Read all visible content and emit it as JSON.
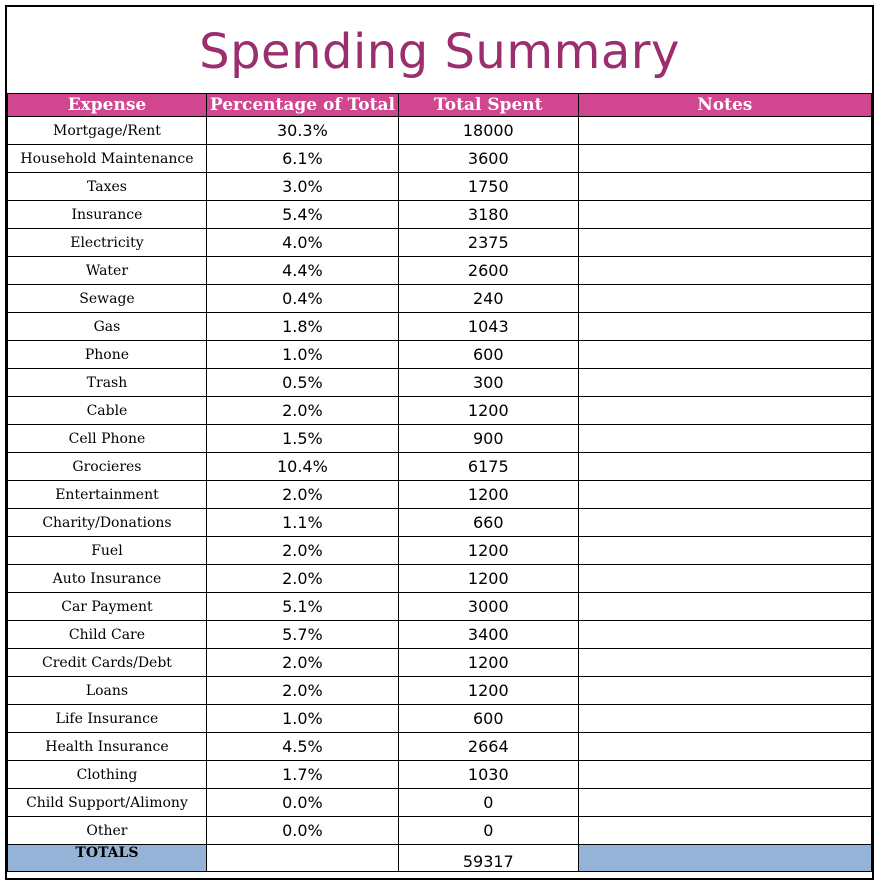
{
  "title": "Spending Summary",
  "columns": [
    "Expense",
    "Percentage of Total",
    "Total  Spent",
    "Notes"
  ],
  "rows": [
    {
      "expense": "Mortgage/Rent",
      "percent": "30.3%",
      "total": "18000",
      "notes": ""
    },
    {
      "expense": "Household Maintenance",
      "percent": "6.1%",
      "total": "3600",
      "notes": ""
    },
    {
      "expense": "Taxes",
      "percent": "3.0%",
      "total": "1750",
      "notes": ""
    },
    {
      "expense": "Insurance",
      "percent": "5.4%",
      "total": "3180",
      "notes": ""
    },
    {
      "expense": "Electricity",
      "percent": "4.0%",
      "total": "2375",
      "notes": ""
    },
    {
      "expense": "Water",
      "percent": "4.4%",
      "total": "2600",
      "notes": ""
    },
    {
      "expense": "Sewage",
      "percent": "0.4%",
      "total": "240",
      "notes": ""
    },
    {
      "expense": "Gas",
      "percent": "1.8%",
      "total": "1043",
      "notes": ""
    },
    {
      "expense": "Phone",
      "percent": "1.0%",
      "total": "600",
      "notes": ""
    },
    {
      "expense": "Trash",
      "percent": "0.5%",
      "total": "300",
      "notes": ""
    },
    {
      "expense": "Cable",
      "percent": "2.0%",
      "total": "1200",
      "notes": ""
    },
    {
      "expense": "Cell Phone",
      "percent": "1.5%",
      "total": "900",
      "notes": ""
    },
    {
      "expense": "Grocieres",
      "percent": "10.4%",
      "total": "6175",
      "notes": ""
    },
    {
      "expense": "Entertainment",
      "percent": "2.0%",
      "total": "1200",
      "notes": ""
    },
    {
      "expense": "Charity/Donations",
      "percent": "1.1%",
      "total": "660",
      "notes": ""
    },
    {
      "expense": "Fuel",
      "percent": "2.0%",
      "total": "1200",
      "notes": ""
    },
    {
      "expense": "Auto Insurance",
      "percent": "2.0%",
      "total": "1200",
      "notes": ""
    },
    {
      "expense": "Car Payment",
      "percent": "5.1%",
      "total": "3000",
      "notes": ""
    },
    {
      "expense": "Child Care",
      "percent": "5.7%",
      "total": "3400",
      "notes": ""
    },
    {
      "expense": "Credit Cards/Debt",
      "percent": "2.0%",
      "total": "1200",
      "notes": ""
    },
    {
      "expense": "Loans",
      "percent": "2.0%",
      "total": "1200",
      "notes": ""
    },
    {
      "expense": "Life Insurance",
      "percent": "1.0%",
      "total": "600",
      "notes": ""
    },
    {
      "expense": "Health Insurance",
      "percent": "4.5%",
      "total": "2664",
      "notes": ""
    },
    {
      "expense": "Clothing",
      "percent": "1.7%",
      "total": "1030",
      "notes": ""
    },
    {
      "expense": "Child Support/Alimony",
      "percent": "0.0%",
      "total": "0",
      "notes": ""
    },
    {
      "expense": "Other",
      "percent": "0.0%",
      "total": "0",
      "notes": ""
    }
  ],
  "totals": {
    "label": "TOTALS",
    "percent": "",
    "total": "59317",
    "notes": ""
  },
  "colors": {
    "title": "#9b2f6e",
    "header_bg": "#d0468f",
    "totals_bg": "#95b3d7"
  }
}
